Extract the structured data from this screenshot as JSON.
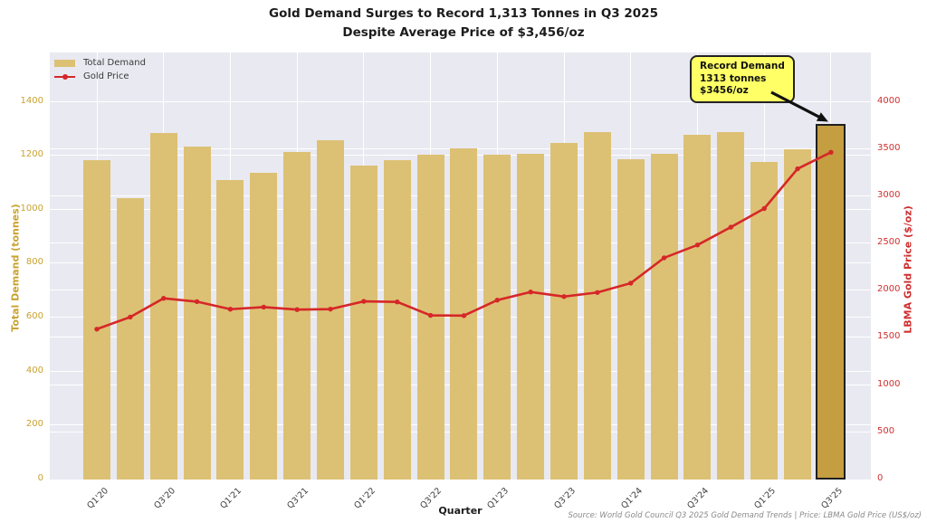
{
  "header": {
    "title_line1": "Gold Demand Surges to Record 1,313 Tonnes in Q3 2025",
    "title_line2": "Despite Average Price of $3,456/oz"
  },
  "legend": {
    "items": [
      {
        "label": "Total Demand"
      },
      {
        "label": "Gold Price"
      }
    ]
  },
  "annotation": {
    "line1": "Record Demand",
    "line2": "1313 tonnes",
    "line3": "$3456/oz"
  },
  "footer": {
    "xlabel": "Quarter",
    "source": "Source: World Gold Council Q3 2025 Gold Demand Trends | Price: LBMA Gold Price (US$/oz)"
  },
  "colors": {
    "plot_bg": "#e9e9f1",
    "grid": "#ffffff",
    "bar": "#dcc174",
    "bar_highlight": "#c49e41",
    "bar_highlight_border": "#1f1f1f",
    "line": "#d62728",
    "left_axis": "#c9a22f",
    "right_axis": "#d03030",
    "tick_text": "#3c3c3c",
    "annotation_bg": "#ffff66",
    "annotation_border": "#222222",
    "source_text": "#8a8a8a"
  },
  "chart_data": {
    "type": "bar+line",
    "categories": [
      "Q1'20",
      "Q2'20",
      "Q3'20",
      "Q4'20",
      "Q1'21",
      "Q2'21",
      "Q3'21",
      "Q4'21",
      "Q1'22",
      "Q2'22",
      "Q3'22",
      "Q4'22",
      "Q1'23",
      "Q2'23",
      "Q3'23",
      "Q4'23",
      "Q1'24",
      "Q2'24",
      "Q3'24",
      "Q4'24",
      "Q1'25",
      "Q2'25",
      "Q3'25"
    ],
    "xtick_label_step": 2,
    "series": [
      {
        "name": "Total Demand",
        "type": "bar",
        "axis": "left",
        "values": [
          1180,
          1040,
          1280,
          1230,
          1105,
          1135,
          1210,
          1255,
          1160,
          1180,
          1200,
          1225,
          1200,
          1205,
          1245,
          1285,
          1185,
          1205,
          1275,
          1285,
          1175,
          1220,
          1313
        ],
        "highlight_index": 22
      },
      {
        "name": "Gold Price",
        "type": "line",
        "axis": "right",
        "values": [
          1583,
          1711,
          1909,
          1874,
          1794,
          1816,
          1790,
          1795,
          1877,
          1871,
          1729,
          1726,
          1890,
          1976,
          1928,
          1971,
          2070,
          2338,
          2474,
          2663,
          2860,
          3281,
          3456
        ]
      }
    ],
    "title": "Gold Demand Surges to Record 1,313 Tonnes in Q3 2025 Despite Average Price of $3,456/oz",
    "xlabel": "Quarter",
    "ylabel_left": "Total Demand (tonnes)",
    "ylabel_right": "LBMA Gold Price ($/oz)",
    "yticks_left": [
      0,
      200,
      400,
      600,
      800,
      1000,
      1200,
      1400
    ],
    "yticks_right": [
      0,
      500,
      1000,
      1500,
      2000,
      2500,
      3000,
      3500,
      4000
    ],
    "ylim_left": [
      0,
      1580
    ],
    "ylim_right": [
      0,
      4513
    ],
    "grid": true,
    "legend_position": "upper left",
    "annotation_text": "Record Demand 1313 tonnes $3456/oz",
    "annotation_target": {
      "category": "Q3'25",
      "demand": 1313,
      "price": 3456
    }
  }
}
